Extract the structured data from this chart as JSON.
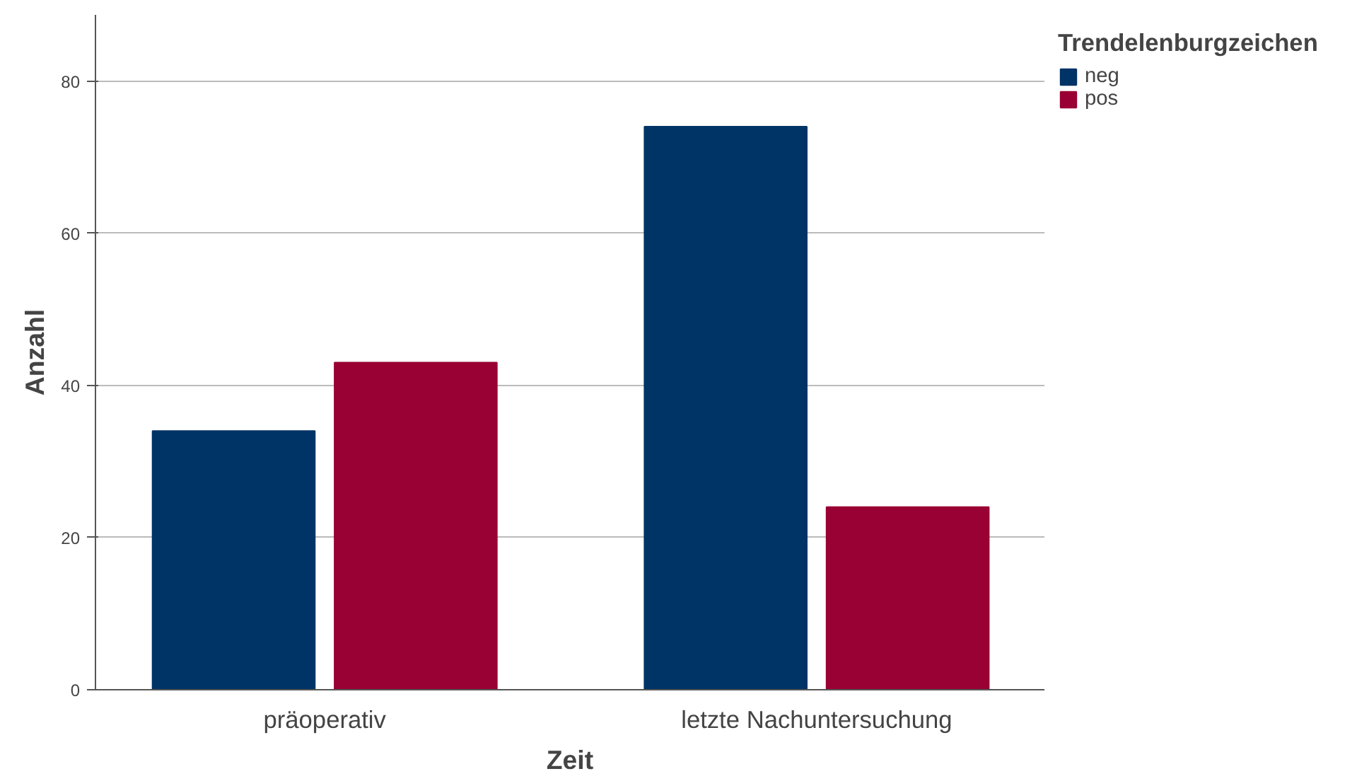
{
  "chart_data": {
    "type": "bar",
    "xlabel": "Zeit",
    "ylabel": "Anzahl",
    "legend_title": "Trendelenburgzeichen",
    "categories": [
      "präoperativ",
      "letzte Nachuntersuchung"
    ],
    "series": [
      {
        "name": "neg",
        "color": "#003366",
        "values": [
          34,
          74
        ]
      },
      {
        "name": "pos",
        "color": "#990033",
        "values": [
          43,
          24
        ]
      }
    ],
    "ylim": [
      0,
      88.7
    ],
    "yticks": [
      0,
      20,
      40,
      60,
      80
    ],
    "grid": "y",
    "legend": "top right"
  }
}
